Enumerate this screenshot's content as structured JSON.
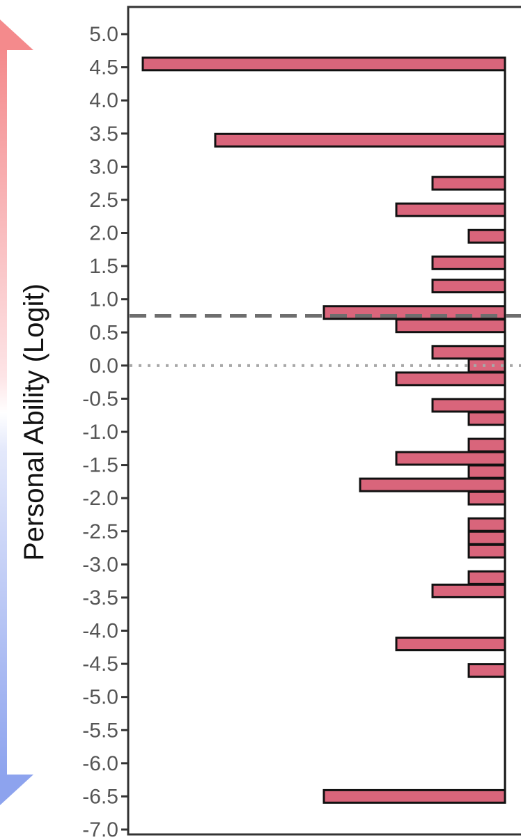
{
  "chart_data": {
    "type": "bar",
    "orientation": "horizontal",
    "ylabel": "Personal Ability (Logit)",
    "ylim": [
      -7.0,
      5.0
    ],
    "yticks": [
      "5.0",
      "4.5",
      "4.0",
      "3.5",
      "3.0",
      "2.5",
      "2.0",
      "1.5",
      "1.0",
      "0.5",
      "0.0",
      "-0.5",
      "-1.0",
      "-1.5",
      "-2.0",
      "-2.5",
      "-3.0",
      "-3.5",
      "-4.0",
      "-4.5",
      "-5.0",
      "-5.5",
      "-6.0",
      "-6.5",
      "-7.0"
    ],
    "y_tick_values": [
      5.0,
      4.5,
      4.0,
      3.5,
      3.0,
      2.5,
      2.0,
      1.5,
      1.0,
      0.5,
      0.0,
      -0.5,
      -1.0,
      -1.5,
      -2.0,
      -2.5,
      -3.0,
      -3.5,
      -4.0,
      -4.5,
      -5.0,
      -5.5,
      -6.0,
      -6.5,
      -7.0
    ],
    "bars": [
      {
        "y": 4.55,
        "count": 10
      },
      {
        "y": 3.4,
        "count": 8
      },
      {
        "y": 2.75,
        "count": 2
      },
      {
        "y": 2.35,
        "count": 3
      },
      {
        "y": 1.95,
        "count": 1
      },
      {
        "y": 1.55,
        "count": 2
      },
      {
        "y": 1.2,
        "count": 2
      },
      {
        "y": 0.8,
        "count": 5
      },
      {
        "y": 0.6,
        "count": 3
      },
      {
        "y": 0.2,
        "count": 2
      },
      {
        "y": 0.0,
        "count": 1
      },
      {
        "y": -0.2,
        "count": 3
      },
      {
        "y": -0.6,
        "count": 2
      },
      {
        "y": -0.8,
        "count": 1
      },
      {
        "y": -1.2,
        "count": 1
      },
      {
        "y": -1.4,
        "count": 3
      },
      {
        "y": -1.6,
        "count": 1
      },
      {
        "y": -1.8,
        "count": 4
      },
      {
        "y": -2.0,
        "count": 1
      },
      {
        "y": -2.4,
        "count": 1
      },
      {
        "y": -2.6,
        "count": 1
      },
      {
        "y": -2.8,
        "count": 1
      },
      {
        "y": -3.2,
        "count": 1
      },
      {
        "y": -3.4,
        "count": 2
      },
      {
        "y": -4.2,
        "count": 3
      },
      {
        "y": -4.6,
        "count": 1
      },
      {
        "y": -6.5,
        "count": 5
      }
    ],
    "reference_lines": [
      {
        "y": 0.75,
        "style": "dashed"
      },
      {
        "y": 0.0,
        "style": "dotted"
      }
    ],
    "grid": false,
    "colors": {
      "bar_fill": "#d9657b",
      "bar_stroke": "#111111",
      "dashed_line": "#6e6e6e",
      "dotted_line": "#a8a8a8",
      "arrow_top": "#f48a8c",
      "arrow_bottom": "#8da3ee"
    }
  }
}
